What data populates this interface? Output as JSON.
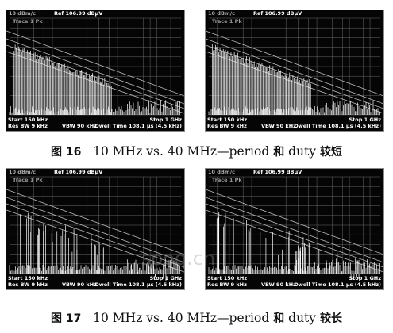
{
  "screens": [
    {
      "id": "fig16-left",
      "top_left": "10 dBm/c",
      "ref": "Ref 106.99 dBµV",
      "trace": "Trace 1 Pk",
      "start": "Start 150 kHz",
      "rbw": "Res BW 9 kHz",
      "vbw": "VBW 90 kHz",
      "stop": "Stop 1 GHz",
      "dwell": "Dwell Time 108.1 µs (4.5 kHz)"
    },
    {
      "id": "fig16-right",
      "top_left": "10 dBm/c",
      "ref": "Ref 106.99 dBµV",
      "trace": "Trace 1 Pk",
      "start": "Start 150 kHz",
      "rbw": "Res BW 9 kHz",
      "vbw": "VBW 90 kHz",
      "stop": "Stop 1 GHz",
      "dwell": "Dwell Time 108.1 µs (4.5 kHz)"
    },
    {
      "id": "fig17-left",
      "top_left": "10 dBm/c",
      "ref": "Ref 106.99 dBµV",
      "trace": "Trace 1 Pk",
      "start": "Start 150 kHz",
      "rbw": "Res BW 9 kHz",
      "vbw": "VBW 90 kHz",
      "stop": "Stop 1 GHz",
      "dwell": "Dwell Time 108.1 µs (4.5 kHz)"
    },
    {
      "id": "fig17-right",
      "top_left": "10 dBm/c",
      "ref": "Ref 106.99 dBµV",
      "trace": "Trace 1 Pk",
      "start": "Start 150 kHz",
      "rbw": "Res BW 9 kHz",
      "vbw": "VBW 90 kHz",
      "stop": "Stop 1 GHz",
      "dwell": "Dwell Time 108.1 µs (4.5 kHz)"
    }
  ],
  "captions": {
    "fig16": {
      "label": "图 16",
      "text": "10 MHz vs. 40 MHz—period",
      "zh1": "和",
      "duty": "duty",
      "zh2": "较短"
    },
    "fig17": {
      "label": "图 17",
      "text": "10 MHz vs. 40 MHz—period",
      "zh1": "和",
      "duty": "duty",
      "zh2": "较长"
    }
  },
  "watermark": "sooq.cn",
  "colors": {
    "screen_bg": "#050505",
    "trace": "#ffffff",
    "grid": "#6a6a6a"
  }
}
